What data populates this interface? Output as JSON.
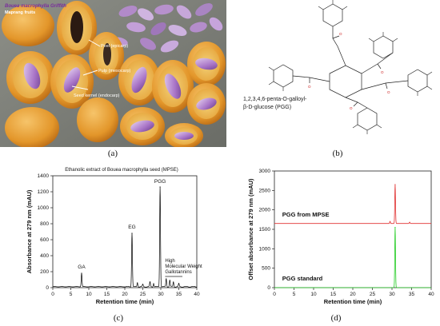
{
  "panels": {
    "a": {
      "label": "(a)",
      "species": "Bouea macrophylla Griffith",
      "caption": "Maprang fruits",
      "annotations": [
        "Peel (epicarp)",
        "Pulp (mesocarp)",
        "Seed kernel (endocarp)"
      ]
    },
    "b": {
      "label": "(b)",
      "compound_name": [
        "1,2,3,4,6-penta-O-galloyl-",
        "β-D-glucose (PGG)"
      ]
    },
    "c": {
      "label": "(c)"
    },
    "d": {
      "label": "(d)"
    }
  },
  "colors": {
    "trace_c": "#000000",
    "trace_d_top": "#e03030",
    "trace_d_bottom": "#22cc22"
  },
  "chart_data": [
    {
      "type": "line",
      "title": "Ethanolic extract of Bouea macrophylla seed (MPSE)",
      "xlabel": "Retention time (min)",
      "ylabel": "Absorbance at 279 nm (mAU)",
      "xlim": [
        0,
        40
      ],
      "ylim": [
        0,
        1400
      ],
      "xticks": [
        0,
        5,
        10,
        15,
        20,
        25,
        30,
        35,
        40
      ],
      "yticks": [
        0,
        200,
        400,
        600,
        800,
        1000,
        1200,
        1400
      ],
      "grid": false,
      "series": [
        {
          "peaks": [
            {
              "x": 8.0,
              "y": 180
            },
            {
              "x": 22.0,
              "y": 680
            },
            {
              "x": 23.5,
              "y": 60
            },
            {
              "x": 25.0,
              "y": 40
            },
            {
              "x": 27.0,
              "y": 70
            },
            {
              "x": 28.0,
              "y": 50
            },
            {
              "x": 29.8,
              "y": 1260
            },
            {
              "x": 31.5,
              "y": 110
            },
            {
              "x": 32.5,
              "y": 90
            },
            {
              "x": 33.5,
              "y": 70
            },
            {
              "x": 35.0,
              "y": 50
            }
          ]
        }
      ],
      "annotations": [
        {
          "text": "GA",
          "x": 8.0
        },
        {
          "text": "EG",
          "x": 22.0
        },
        {
          "text": "PGG",
          "x": 29.8
        },
        {
          "text": "High",
          "x": 34.0
        },
        {
          "text": "Molecular Weight",
          "x": 34.0
        },
        {
          "text": "Gallotannins",
          "x": 34.0
        }
      ]
    },
    {
      "type": "line",
      "xlabel": "Retention time (min)",
      "ylabel": "Offset absorbance at 279 nm (mAU)",
      "xlim": [
        0,
        40
      ],
      "ylim": [
        0,
        3000
      ],
      "xticks": [
        0,
        5,
        10,
        15,
        20,
        25,
        30,
        35,
        40
      ],
      "yticks": [
        0,
        500,
        1000,
        1500,
        2000,
        2500,
        3000
      ],
      "grid": false,
      "series": [
        {
          "name": "PGG from MPSE",
          "baseline": 1650,
          "peaks": [
            {
              "x": 30.8,
              "y": 2650
            },
            {
              "x": 29.5,
              "y": 1700
            },
            {
              "x": 34.5,
              "y": 1680
            }
          ]
        },
        {
          "name": "PGG standard",
          "baseline": 0,
          "peaks": [
            {
              "x": 30.8,
              "y": 1550
            }
          ]
        }
      ]
    }
  ]
}
